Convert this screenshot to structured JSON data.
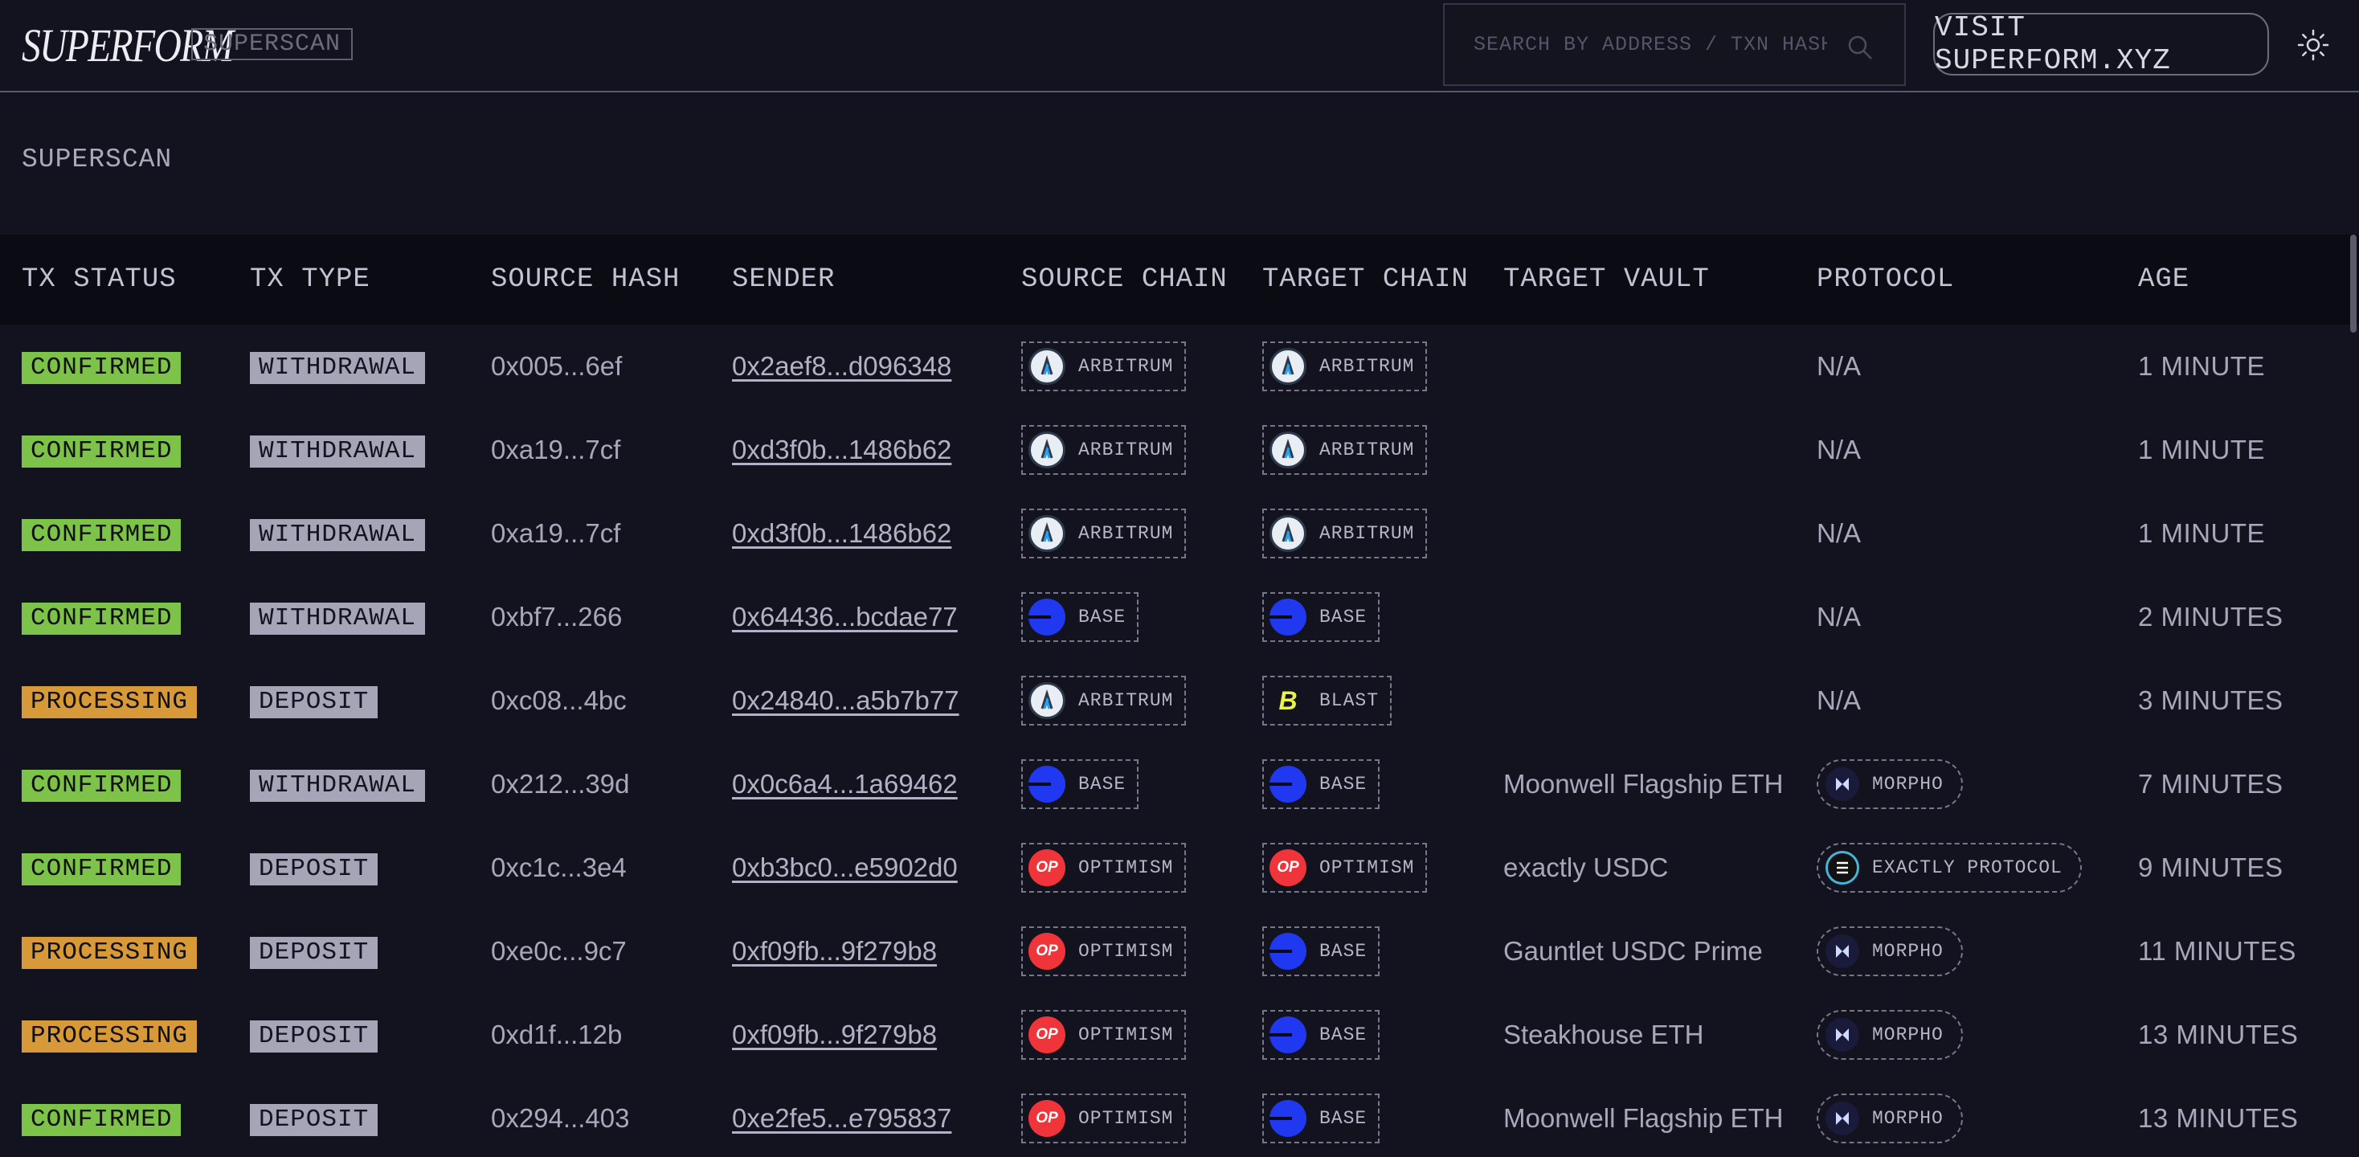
{
  "header": {
    "brand": "SUPERFORM",
    "brand_tag": "SUPERSCAN",
    "search_placeholder": "SEARCH BY ADDRESS / TXN HASH",
    "visit_button": "VISIT SUPERFORM.XYZ"
  },
  "page": {
    "title": "SUPERSCAN"
  },
  "table": {
    "columns": [
      "TX STATUS",
      "TX TYPE",
      "SOURCE HASH",
      "SENDER",
      "SOURCE CHAIN",
      "TARGET CHAIN",
      "TARGET VAULT",
      "PROTOCOL",
      "AGE"
    ],
    "rows": [
      {
        "status": "CONFIRMED",
        "type": "WITHDRAWAL",
        "source_hash": "0x005...6ef",
        "sender": "0x2aef8...d096348",
        "source_chain": "ARBITRUM",
        "target_chain": "ARBITRUM",
        "target_vault": "",
        "protocol": "N/A",
        "age": "1 MINUTE"
      },
      {
        "status": "CONFIRMED",
        "type": "WITHDRAWAL",
        "source_hash": "0xa19...7cf",
        "sender": "0xd3f0b...1486b62",
        "source_chain": "ARBITRUM",
        "target_chain": "ARBITRUM",
        "target_vault": "",
        "protocol": "N/A",
        "age": "1 MINUTE"
      },
      {
        "status": "CONFIRMED",
        "type": "WITHDRAWAL",
        "source_hash": "0xa19...7cf",
        "sender": "0xd3f0b...1486b62",
        "source_chain": "ARBITRUM",
        "target_chain": "ARBITRUM",
        "target_vault": "",
        "protocol": "N/A",
        "age": "1 MINUTE"
      },
      {
        "status": "CONFIRMED",
        "type": "WITHDRAWAL",
        "source_hash": "0xbf7...266",
        "sender": "0x64436...bcdae77",
        "source_chain": "BASE",
        "target_chain": "BASE",
        "target_vault": "",
        "protocol": "N/A",
        "age": "2 MINUTES"
      },
      {
        "status": "PROCESSING",
        "type": "DEPOSIT",
        "source_hash": "0xc08...4bc",
        "sender": "0x24840...a5b7b77",
        "source_chain": "ARBITRUM",
        "target_chain": "BLAST",
        "target_vault": "",
        "protocol": "N/A",
        "age": "3 MINUTES"
      },
      {
        "status": "CONFIRMED",
        "type": "WITHDRAWAL",
        "source_hash": "0x212...39d",
        "sender": "0x0c6a4...1a69462",
        "source_chain": "BASE",
        "target_chain": "BASE",
        "target_vault": "Moonwell Flagship ETH",
        "protocol": "MORPHO",
        "age": "7 MINUTES"
      },
      {
        "status": "CONFIRMED",
        "type": "DEPOSIT",
        "source_hash": "0xc1c...3e4",
        "sender": "0xb3bc0...e5902d0",
        "source_chain": "OPTIMISM",
        "target_chain": "OPTIMISM",
        "target_vault": "exactly USDC",
        "protocol": "EXACTLY PROTOCOL",
        "age": "9 MINUTES"
      },
      {
        "status": "PROCESSING",
        "type": "DEPOSIT",
        "source_hash": "0xe0c...9c7",
        "sender": "0xf09fb...9f279b8",
        "source_chain": "OPTIMISM",
        "target_chain": "BASE",
        "target_vault": "Gauntlet USDC Prime",
        "protocol": "MORPHO",
        "age": "11 MINUTES"
      },
      {
        "status": "PROCESSING",
        "type": "DEPOSIT",
        "source_hash": "0xd1f...12b",
        "sender": "0xf09fb...9f279b8",
        "source_chain": "OPTIMISM",
        "target_chain": "BASE",
        "target_vault": "Steakhouse ETH",
        "protocol": "MORPHO",
        "age": "13 MINUTES"
      },
      {
        "status": "CONFIRMED",
        "type": "DEPOSIT",
        "source_hash": "0x294...403",
        "sender": "0xe2fe5...e795837",
        "source_chain": "OPTIMISM",
        "target_chain": "BASE",
        "target_vault": "Moonwell Flagship ETH",
        "protocol": "MORPHO",
        "age": "13 MINUTES"
      }
    ]
  },
  "icons": {
    "search": "search-icon",
    "theme": "sun-icon",
    "chains": {
      "ARBITRUM": "arbitrum-logo-icon",
      "BASE": "base-logo-icon",
      "OPTIMISM": "optimism-logo-icon",
      "BLAST": "blast-logo-icon"
    },
    "protocols": {
      "MORPHO": "morpho-logo-icon",
      "EXACTLY PROTOCOL": "exactly-logo-icon"
    },
    "logo_glyphs": {
      "OPTIMISM": "OP",
      "BLAST": "B"
    }
  },
  "colors": {
    "background": "#131320",
    "confirmed": "#7dc34a",
    "processing": "#d89a39",
    "type_badge": "#a6a5b8"
  }
}
